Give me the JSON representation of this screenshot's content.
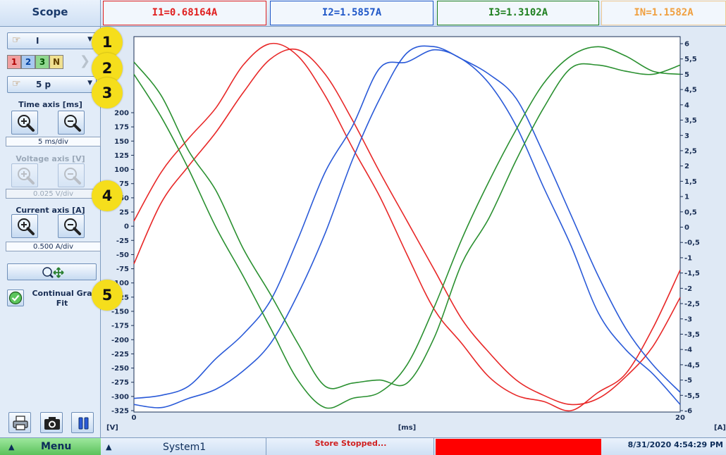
{
  "top_bar": {
    "title": "Scope",
    "readouts": {
      "i1": "I1=0.68164A",
      "i2": "I2=1.5857A",
      "i3": "I3=1.3102A",
      "in": "IN=1.1582A"
    }
  },
  "left_panel": {
    "channel_select": {
      "value": "I",
      "icon": "hand-pointer-icon"
    },
    "phases": [
      "1",
      "2",
      "3",
      "N"
    ],
    "points_select": {
      "value": "5 p",
      "icon": "hand-pointer-icon"
    },
    "time_axis": {
      "label": "Time axis [ms]",
      "div": "5 ms/div"
    },
    "voltage_axis": {
      "label": "Voltage axis [V]",
      "div": "0.025 V/div",
      "enabled": false
    },
    "current_axis": {
      "label": "Current axis [A]",
      "div": "0.500 A/div"
    },
    "continual_fit": {
      "label": "Continual Graph Fit",
      "line1": "Continual Gra",
      "line2": "Fit",
      "checked": true
    }
  },
  "markers": [
    "1",
    "2",
    "3",
    "4",
    "5"
  ],
  "bottom_bar": {
    "menu_label": "Menu",
    "system_label": "System1",
    "store_status": "Store Stopped...",
    "datetime": "8/31/2020 4:54:29 PM"
  },
  "colors": {
    "phase1": "#e82828",
    "phase2": "#2a5ad8",
    "phase3": "#2a9030",
    "neutral": "#f0a040"
  },
  "chart_data": {
    "type": "line",
    "left_axis_unit": "[V]",
    "right_axis_unit": "[A]",
    "xlabel": "[ms]",
    "xlim": [
      0,
      20
    ],
    "x_ticks": [
      "0",
      "20"
    ],
    "left_ylim": [
      -325,
      250
    ],
    "left_ticks": [
      "200",
      "175",
      "150",
      "125",
      "100",
      "75",
      "50",
      "25",
      "0",
      "-25",
      "-50",
      "-75",
      "-100",
      "-125",
      "-150",
      "-175",
      "-200",
      "-225",
      "-250",
      "-275",
      "-300",
      "-325"
    ],
    "right_ylim": [
      -6,
      6
    ],
    "right_ticks": [
      "6",
      "5,5",
      "5",
      "4,5",
      "4",
      "3,5",
      "3",
      "2,5",
      "2",
      "1,5",
      "1",
      "0,5",
      "0",
      "-0,5",
      "-1",
      "-1,5",
      "-2",
      "-2,5",
      "-3",
      "-3,5",
      "-4",
      "-4,5",
      "-5",
      "-5,5",
      "-6"
    ],
    "series": [
      {
        "color": "#e82828",
        "x": [
          0,
          1,
          2,
          3,
          4,
          5,
          6,
          7,
          8,
          9,
          10,
          11,
          12,
          13,
          14,
          15,
          16,
          17,
          18,
          19,
          20
        ],
        "y": [
          0.2,
          1.8,
          2.9,
          3.9,
          5.3,
          6.0,
          5.6,
          4.3,
          2.6,
          1.0,
          -0.9,
          -2.7,
          -3.8,
          -4.9,
          -5.5,
          -5.7,
          -6.0,
          -5.4,
          -4.8,
          -3.3,
          -1.4
        ]
      },
      {
        "color": "#e82828",
        "x": [
          0,
          1,
          2,
          3,
          4,
          5,
          6,
          7,
          8,
          9,
          10,
          11,
          12,
          13,
          14,
          15,
          16,
          17,
          18,
          19,
          20
        ],
        "y": [
          -1.2,
          0.8,
          2.0,
          3.1,
          4.4,
          5.5,
          5.8,
          5.0,
          3.5,
          1.8,
          0.2,
          -1.4,
          -3.0,
          -4.1,
          -5.0,
          -5.5,
          -5.8,
          -5.6,
          -4.9,
          -3.9,
          -2.3
        ]
      },
      {
        "color": "#2a5ad8",
        "x": [
          0,
          1,
          2,
          3,
          4,
          5,
          6,
          7,
          8,
          9,
          10,
          11,
          12,
          13,
          14,
          15,
          16,
          17,
          18,
          19,
          20
        ],
        "y": [
          -5.6,
          -5.5,
          -5.2,
          -4.3,
          -3.5,
          -2.4,
          -0.4,
          1.8,
          3.3,
          5.2,
          5.4,
          5.8,
          5.5,
          4.7,
          3.3,
          1.3,
          -0.6,
          -2.8,
          -4.0,
          -4.8,
          -5.8
        ]
      },
      {
        "color": "#2a5ad8",
        "x": [
          0,
          1,
          2,
          3,
          4,
          5,
          6,
          7,
          8,
          9,
          10,
          11,
          12,
          13,
          14,
          15,
          16,
          17,
          18,
          19,
          20
        ],
        "y": [
          -5.8,
          -5.9,
          -5.6,
          -5.3,
          -4.7,
          -3.8,
          -2.2,
          -0.2,
          2.2,
          4.2,
          5.7,
          5.9,
          5.5,
          5.0,
          4.2,
          2.4,
          0.4,
          -1.6,
          -3.3,
          -4.5,
          -5.4
        ]
      },
      {
        "color": "#2a9030",
        "x": [
          0,
          1,
          2,
          3,
          4,
          5,
          6,
          7,
          8,
          9,
          10,
          11,
          12,
          13,
          14,
          15,
          16,
          17,
          18,
          19,
          20
        ],
        "y": [
          5.4,
          4.3,
          2.5,
          1.2,
          -0.7,
          -2.2,
          -3.8,
          -5.2,
          -5.1,
          -5.0,
          -5.1,
          -3.6,
          -1.2,
          0.3,
          2.2,
          3.9,
          5.2,
          5.3,
          5.1,
          5.0,
          5.3
        ]
      },
      {
        "color": "#2a9030",
        "x": [
          0,
          1,
          2,
          3,
          4,
          5,
          6,
          7,
          8,
          9,
          10,
          11,
          12,
          13,
          14,
          15,
          16,
          17,
          18,
          19,
          20
        ],
        "y": [
          5.0,
          3.6,
          1.9,
          0.0,
          -1.6,
          -3.3,
          -5.0,
          -5.9,
          -5.6,
          -5.4,
          -4.5,
          -2.6,
          -0.4,
          1.5,
          3.2,
          4.7,
          5.6,
          5.9,
          5.6,
          5.1,
          5.0
        ]
      }
    ]
  }
}
